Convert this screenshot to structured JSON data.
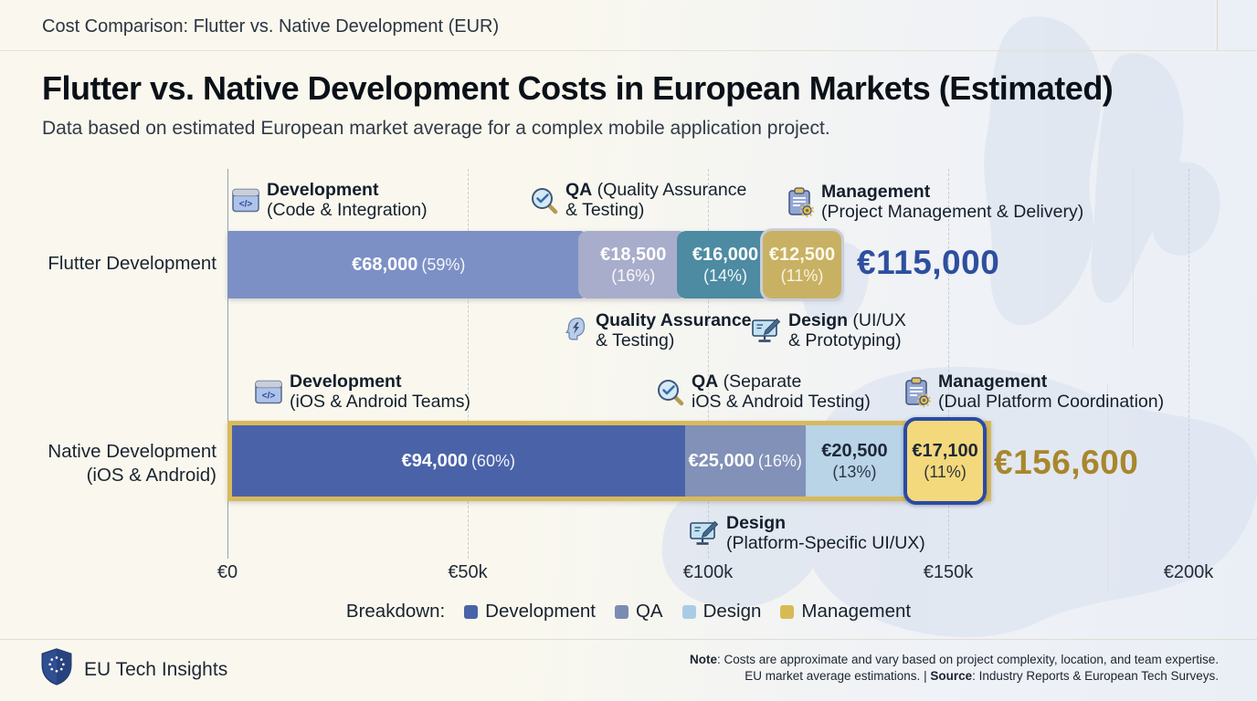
{
  "header": {
    "breadcrumb": "Cost Comparison: Flutter vs. Native Development (EUR)"
  },
  "title": "Flutter vs. Native Development Costs in European Markets (Estimated)",
  "subtitle": "Data based on estimated European market average for a complex mobile application project.",
  "chart_data": {
    "type": "bar",
    "orientation": "horizontal-stacked",
    "title": "Flutter vs. Native Development Costs in European Markets (Estimated)",
    "currency": "EUR",
    "categories": [
      "Flutter Development",
      "Native Development (iOS & Android)"
    ],
    "series": [
      {
        "name": "Development",
        "values": [
          68000,
          94000
        ],
        "pcts": [
          59,
          60
        ]
      },
      {
        "name": "QA",
        "values": [
          18500,
          25000
        ],
        "pcts": [
          16,
          16
        ]
      },
      {
        "name": "Design",
        "values": [
          16000,
          20500
        ],
        "pcts": [
          14,
          13
        ]
      },
      {
        "name": "Management",
        "values": [
          12500,
          17100
        ],
        "pcts": [
          11,
          11
        ]
      }
    ],
    "totals_eur": [
      115000,
      156600
    ],
    "x_axis": {
      "ticks": [
        "€0",
        "€50k",
        "€100k",
        "€150k",
        "€200k"
      ],
      "range_eur": [
        0,
        200000
      ]
    },
    "grid": "vertical-dashed",
    "legend_position": "bottom"
  },
  "axis": {
    "ticks": [
      "€0",
      "€50k",
      "€100k",
      "€150k",
      "€200k"
    ]
  },
  "rows": [
    {
      "label_line1": "Flutter Development",
      "label_line2": "",
      "total": "€115,000",
      "total_color": "#2d4f9e",
      "segments": [
        {
          "name": "Development",
          "amount": "€68,000",
          "pct_label": "(59%)",
          "pct": 59,
          "color": "#7c90c5",
          "text": "#ffffff",
          "two_line": false
        },
        {
          "name": "QA",
          "amount": "€18,500",
          "pct_label": "(16%)",
          "pct": 16,
          "color": "#a8adcb",
          "text": "#ffffff",
          "two_line": true
        },
        {
          "name": "Design",
          "amount": "€16,000",
          "pct_label": "(14%)",
          "pct": 14,
          "color": "#4c8ba2",
          "text": "#ffffff",
          "two_line": true
        },
        {
          "name": "Management",
          "amount": "€12,500",
          "pct_label": "(11%)",
          "pct": 11,
          "color": "#c8b163",
          "text": "#fdf9ec",
          "two_line": true,
          "highlight": "ring"
        }
      ],
      "annotations": [
        {
          "icon": "code-window-icon",
          "title": "Development",
          "title_suffix": "",
          "line2": "(Code & Integration)"
        },
        {
          "icon": "magnifier-check-icon",
          "title": "QA",
          "title_suffix": " (Quality Assurance",
          "line2": "& Testing)"
        },
        {
          "icon": "clipboard-gear-icon",
          "title": "Management",
          "title_suffix": "",
          "line2": "(Project Management & Delivery)"
        },
        {
          "icon": "head-lightning-icon",
          "title": "Quality Assurance",
          "title_suffix": "",
          "line2": "& Testing)"
        },
        {
          "icon": "monitor-pencil-icon",
          "title": "Design",
          "title_suffix": " (UI/UX",
          "line2": "& Prototyping)"
        }
      ]
    },
    {
      "label_line1": "Native Development",
      "label_line2": "(iOS & Android)",
      "total": "€156,600",
      "total_color": "#a8872c",
      "segments": [
        {
          "name": "Development",
          "amount": "€94,000",
          "pct_label": "(60%)",
          "pct": 60,
          "color": "#4a63a8",
          "text": "#ffffff",
          "two_line": false
        },
        {
          "name": "QA",
          "amount": "€25,000",
          "pct_label": "(16%)",
          "pct": 16,
          "color": "#8191b7",
          "text": "#ffffff",
          "two_line": false
        },
        {
          "name": "Design",
          "amount": "€20,500",
          "pct_label": "(13%)",
          "pct": 13,
          "color": "#b9d3e7",
          "text": "#1d2838",
          "two_line": true
        },
        {
          "name": "Management",
          "amount": "€17,100",
          "pct_label": "(11%)",
          "pct": 11,
          "color": "#f4d87c",
          "text": "#1d2838",
          "two_line": true,
          "highlight": "box"
        }
      ],
      "annotations": [
        {
          "icon": "code-window-icon",
          "title": "Development",
          "title_suffix": "",
          "line2": "(iOS & Android Teams)"
        },
        {
          "icon": "magnifier-check-icon",
          "title": "QA",
          "title_suffix": " (Separate",
          "line2": "iOS & Android Testing)"
        },
        {
          "icon": "clipboard-gear-icon",
          "title": "Management",
          "title_suffix": "",
          "line2": "(Dual Platform Coordination)"
        },
        {
          "icon": "monitor-pencil-icon",
          "title": "Design",
          "title_suffix": "",
          "line2": "(Platform-Specific UI/UX)"
        }
      ]
    }
  ],
  "legend": {
    "prefix": "Breakdown:",
    "items": [
      {
        "label": "Development",
        "color": "#4a63a8"
      },
      {
        "label": "QA",
        "color": "#7b8cb3"
      },
      {
        "label": "Design",
        "color": "#a9cce5"
      },
      {
        "label": "Management",
        "color": "#d8ba55"
      }
    ]
  },
  "footer": {
    "brand": "EU Tech Insights",
    "note_label": "Note",
    "note_text": ": Costs are approximate and vary based on project complexity, location, and team expertise.",
    "line2_prefix": "EU market average estimations. | ",
    "source_label": "Source",
    "source_text": ": Industry Reports & European Tech Surveys."
  }
}
